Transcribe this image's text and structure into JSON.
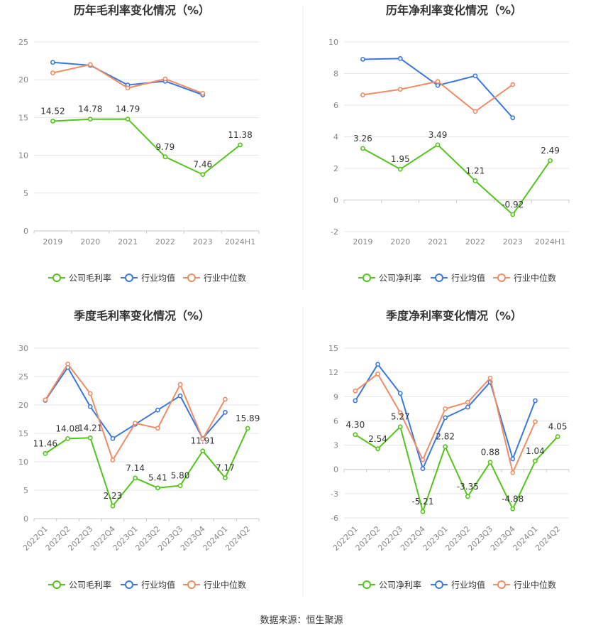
{
  "source_text": "数据来源：恒生聚源",
  "colors": {
    "company": "#52c41a",
    "industry_avg": "#3a78e0",
    "industry_median": "#f08c64",
    "grid": "#e6e6e6",
    "axis": "#c8c8c8",
    "tick_text": "#888888"
  },
  "chart_data": [
    {
      "type": "line",
      "title": "历年毛利率变化情况（%）",
      "x": [
        "2019",
        "2020",
        "2021",
        "2022",
        "2023",
        "2024H1"
      ],
      "ylim": [
        0,
        25
      ],
      "yticks": [
        0,
        5,
        10,
        15,
        20,
        25
      ],
      "grid": true,
      "legend_position": "bottom",
      "series": [
        {
          "name": "公司毛利率",
          "color": "#52c41a",
          "labels": true,
          "values": [
            14.52,
            14.78,
            14.79,
            9.79,
            7.46,
            11.38
          ]
        },
        {
          "name": "行业均值",
          "color": "#3a78e0",
          "labels": false,
          "values": [
            22.3,
            21.9,
            19.3,
            19.8,
            18.0,
            null
          ]
        },
        {
          "name": "行业中位数",
          "color": "#f08c64",
          "labels": false,
          "values": [
            20.9,
            22.0,
            18.9,
            20.1,
            18.2,
            null
          ]
        }
      ]
    },
    {
      "type": "line",
      "title": "历年净利率变化情况（%）",
      "x": [
        "2019",
        "2020",
        "2021",
        "2022",
        "2023",
        "2024H1"
      ],
      "ylim": [
        -2,
        10
      ],
      "yticks": [
        -2,
        0,
        2,
        4,
        6,
        8,
        10
      ],
      "grid": true,
      "legend_position": "bottom",
      "series": [
        {
          "name": "公司净利率",
          "color": "#52c41a",
          "labels": true,
          "values": [
            3.26,
            1.95,
            3.49,
            1.21,
            -0.92,
            2.49
          ]
        },
        {
          "name": "行业均值",
          "color": "#3a78e0",
          "labels": false,
          "values": [
            8.9,
            8.95,
            7.25,
            7.85,
            5.2,
            null
          ]
        },
        {
          "name": "行业中位数",
          "color": "#f08c64",
          "labels": false,
          "values": [
            6.65,
            7.0,
            7.5,
            5.6,
            7.3,
            null
          ]
        }
      ]
    },
    {
      "type": "line",
      "title": "季度毛利率变化情况（%）",
      "x": [
        "2022Q1",
        "2022Q2",
        "2022Q3",
        "2022Q4",
        "2023Q1",
        "2023Q2",
        "2023Q3",
        "2023Q4",
        "2024Q1",
        "2024Q2"
      ],
      "ylim": [
        0,
        30
      ],
      "yticks": [
        0,
        5,
        10,
        15,
        20,
        25,
        30
      ],
      "rotate_x_labels": true,
      "grid": true,
      "legend_position": "bottom",
      "series": [
        {
          "name": "公司毛利率",
          "color": "#52c41a",
          "labels": true,
          "values": [
            11.46,
            14.08,
            14.21,
            2.23,
            7.14,
            5.41,
            5.8,
            11.91,
            7.17,
            15.89
          ]
        },
        {
          "name": "行业均值",
          "color": "#3a78e0",
          "labels": false,
          "values": [
            20.8,
            26.6,
            19.7,
            14.1,
            16.6,
            19.1,
            21.6,
            14.1,
            18.7,
            null
          ]
        },
        {
          "name": "行业中位数",
          "color": "#f08c64",
          "labels": false,
          "values": [
            20.9,
            27.2,
            22.0,
            10.3,
            16.8,
            15.9,
            23.6,
            14.0,
            21.0,
            null
          ]
        }
      ]
    },
    {
      "type": "line",
      "title": "季度净利率变化情况（%）",
      "x": [
        "2022Q1",
        "2022Q2",
        "2022Q3",
        "2022Q4",
        "2023Q1",
        "2023Q2",
        "2023Q3",
        "2023Q4",
        "2024Q1",
        "2024Q2"
      ],
      "ylim": [
        -6,
        15
      ],
      "yticks": [
        -6,
        -3,
        0,
        3,
        6,
        9,
        12,
        15
      ],
      "rotate_x_labels": true,
      "grid": true,
      "legend_position": "bottom",
      "series": [
        {
          "name": "公司净利率",
          "color": "#52c41a",
          "labels": true,
          "values": [
            4.3,
            2.54,
            5.27,
            -5.21,
            2.82,
            -3.35,
            0.88,
            -4.88,
            1.04,
            4.05
          ]
        },
        {
          "name": "行业均值",
          "color": "#3a78e0",
          "labels": false,
          "values": [
            8.5,
            13.0,
            9.4,
            0.1,
            6.4,
            7.7,
            10.8,
            1.3,
            8.5,
            null
          ]
        },
        {
          "name": "行业中位数",
          "color": "#f08c64",
          "labels": false,
          "values": [
            9.7,
            11.8,
            7.0,
            1.2,
            7.5,
            8.3,
            11.3,
            -0.4,
            5.9,
            null
          ]
        }
      ]
    }
  ]
}
